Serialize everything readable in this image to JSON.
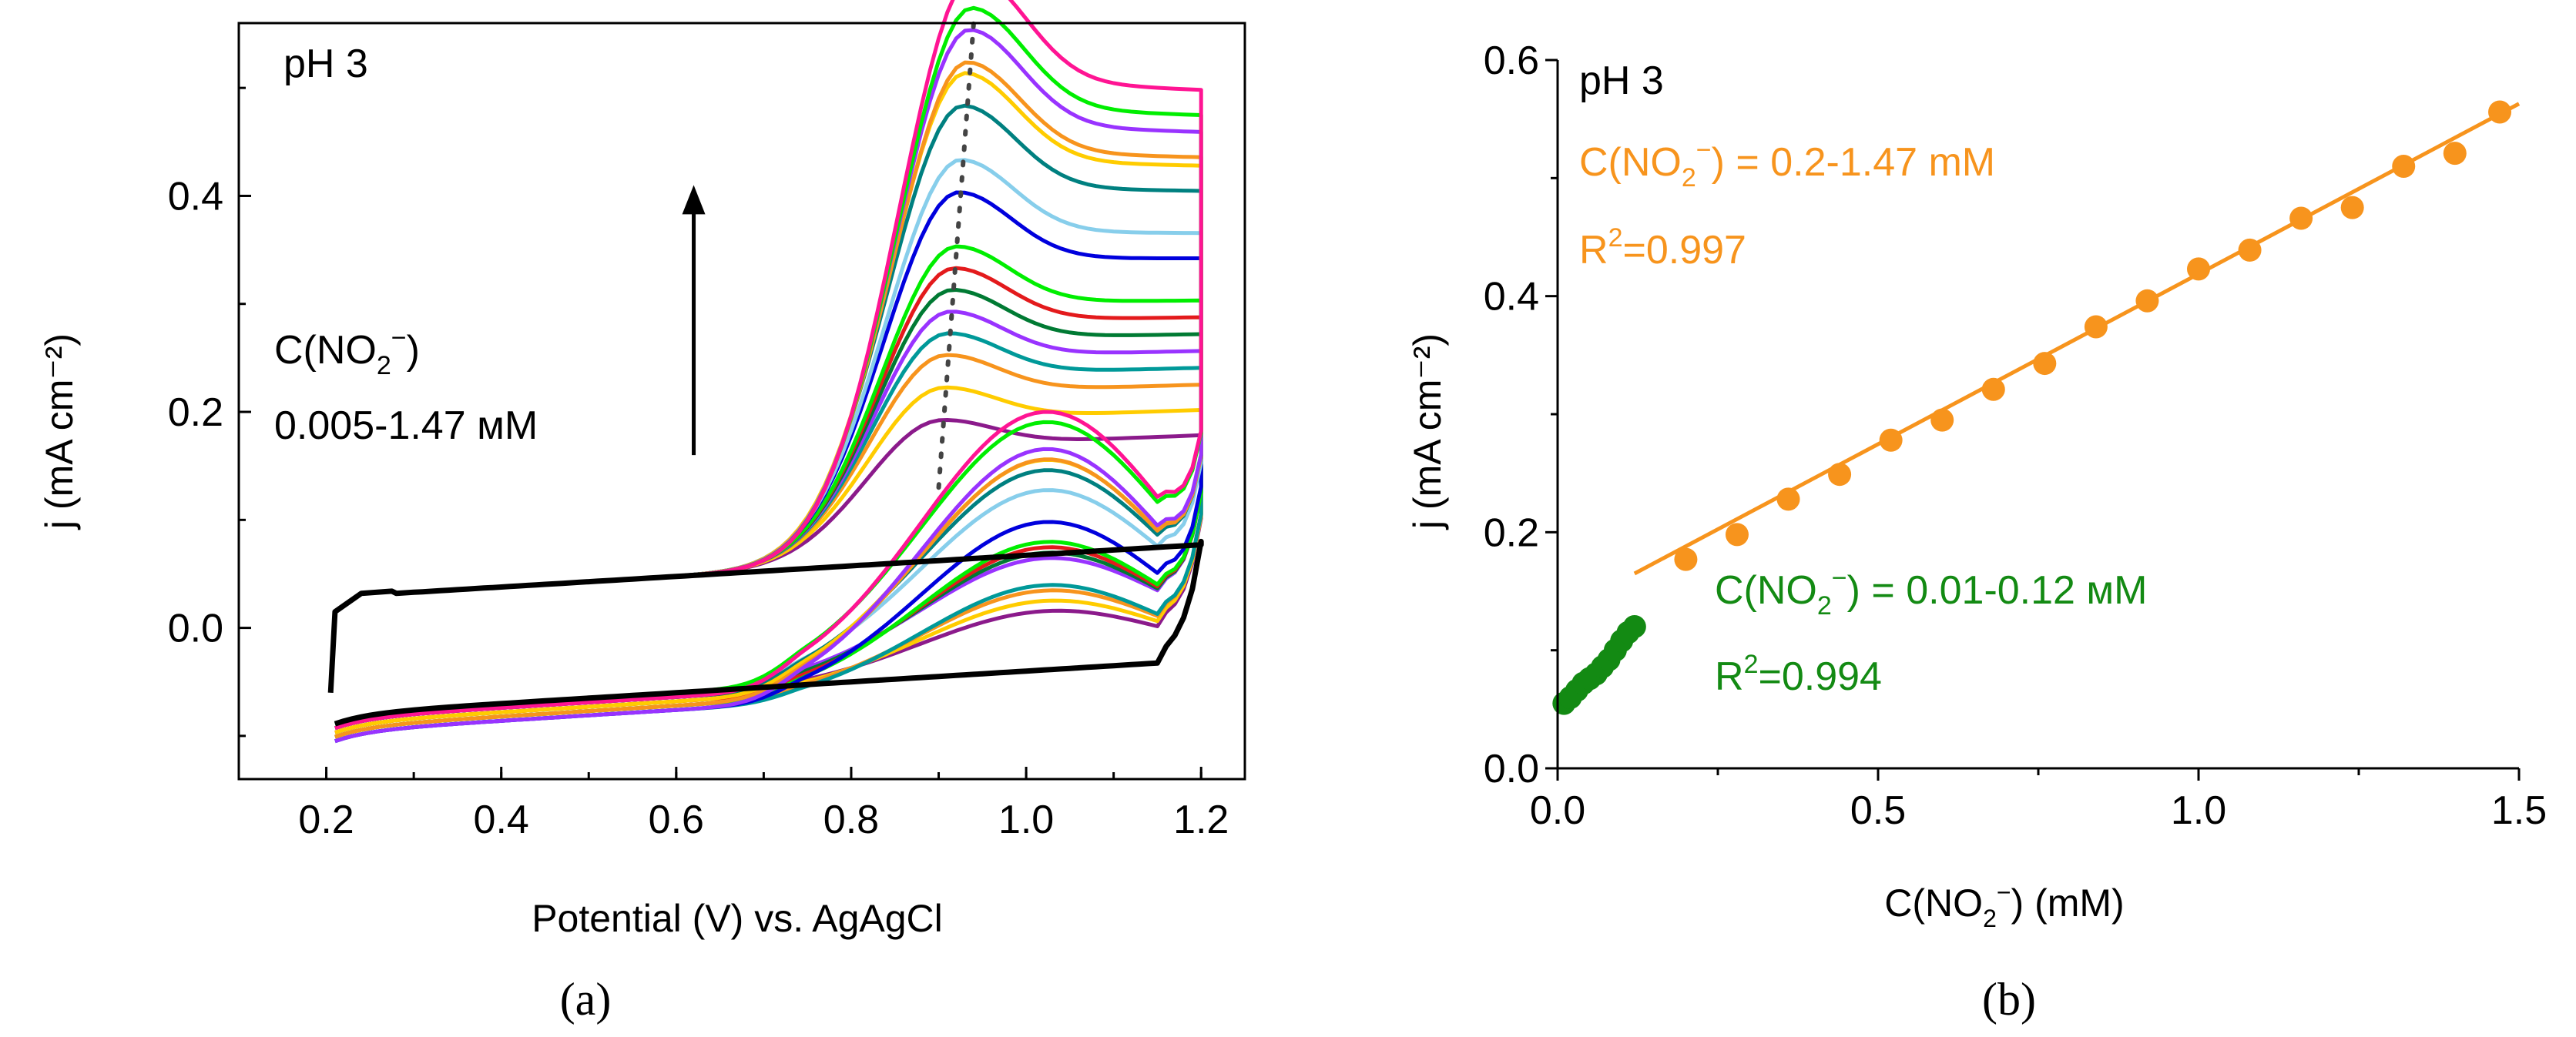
{
  "chart_data": [
    {
      "type": "line",
      "panel_label": "(a)",
      "xlabel": "Potential (V) vs. AgAgCl",
      "ylabel": "j (mA cm⁻²)",
      "xlim": [
        0.1,
        1.25
      ],
      "ylim": [
        -0.14,
        0.56
      ],
      "xticks": [
        0.2,
        0.4,
        0.6,
        0.8,
        1.0,
        1.2
      ],
      "xtick_labels": [
        "0.2",
        "0.4",
        "0.6",
        "0.8",
        "1.0",
        "1.2"
      ],
      "yticks": [
        0.0,
        0.2,
        0.4
      ],
      "ytick_labels": [
        "0.0",
        "0.2",
        "0.4"
      ],
      "annotations": {
        "ph": "pH 3",
        "conc_label": "C(NO",
        "conc_sub": "2",
        "conc_sup": "−",
        "conc_close": ")",
        "range": "0.005-1.47 мМ"
      },
      "arrow": {
        "x": 0.62,
        "y_from": 0.16,
        "y_to": 0.41
      },
      "peak_potential_start": 0.9,
      "peak_potential_end": 0.94,
      "series_colors": [
        "#000000",
        "#8b1a8b",
        "#ffcc00",
        "#f7941d",
        "#009999",
        "#9933ff",
        "#007a33",
        "#e31a1c",
        "#00ee00",
        "#0000dd",
        "#87ceeb",
        "#008080",
        "#ffcc00",
        "#f7941d",
        "#9933ff",
        "#00ee00",
        "#ff1493"
      ],
      "peak_currents": [
        0.0,
        0.13,
        0.16,
        0.19,
        0.21,
        0.23,
        0.25,
        0.27,
        0.29,
        0.34,
        0.37,
        0.42,
        0.45,
        0.46,
        0.49,
        0.51,
        0.54
      ]
    },
    {
      "type": "scatter",
      "panel_label": "(b)",
      "xlabel_pre": "C(NO",
      "xlabel_sub": "2",
      "xlabel_sup": "−",
      "xlabel_post": ") (mM)",
      "ylabel": "j (mA cm⁻²)",
      "xlim": [
        0,
        1.5
      ],
      "ylim": [
        0,
        0.6
      ],
      "xticks": [
        0.0,
        0.5,
        1.0,
        1.5
      ],
      "xtick_labels": [
        "0.0",
        "0.5",
        "1.0",
        "1.5"
      ],
      "yticks": [
        0.0,
        0.2,
        0.4,
        0.6
      ],
      "ytick_labels": [
        "0.0",
        "0.2",
        "0.4",
        "0.6"
      ],
      "ph": "pH 3",
      "series": [
        {
          "color": "#f7941d",
          "x": [
            0.2,
            0.28,
            0.36,
            0.44,
            0.52,
            0.6,
            0.68,
            0.76,
            0.84,
            0.92,
            1.0,
            1.08,
            1.16,
            1.24,
            1.32,
            1.4,
            1.47
          ],
          "y": [
            0.177,
            0.198,
            0.228,
            0.249,
            0.278,
            0.295,
            0.321,
            0.343,
            0.374,
            0.396,
            0.423,
            0.439,
            0.466,
            0.475,
            0.51,
            0.521,
            0.556
          ],
          "fit": {
            "x": [
              0.12,
              1.5
            ],
            "y": [
              0.165,
              0.563
            ]
          },
          "eq_pre": "C(NO",
          "eq_sub": "2",
          "eq_sup": "−",
          "eq_post": ") = 0.2-1.47 mM",
          "r2_pre": "R",
          "r2_sup": "2",
          "r2_post": "=0.997"
        },
        {
          "color": "#138a13",
          "x": [
            0.01,
            0.02,
            0.03,
            0.04,
            0.05,
            0.06,
            0.07,
            0.08,
            0.09,
            0.1,
            0.11,
            0.12
          ],
          "y": [
            0.055,
            0.06,
            0.066,
            0.072,
            0.076,
            0.08,
            0.086,
            0.092,
            0.1,
            0.108,
            0.115,
            0.12
          ],
          "fit": {
            "x": [
              0.005,
              0.125
            ],
            "y": [
              0.052,
              0.123
            ]
          },
          "eq_pre": "C(NO",
          "eq_sub": "2",
          "eq_sup": "−",
          "eq_post": ") = 0.01-0.12 мМ",
          "r2_pre": "R",
          "r2_sup": "2",
          "r2_post": "=0.994"
        }
      ]
    }
  ]
}
